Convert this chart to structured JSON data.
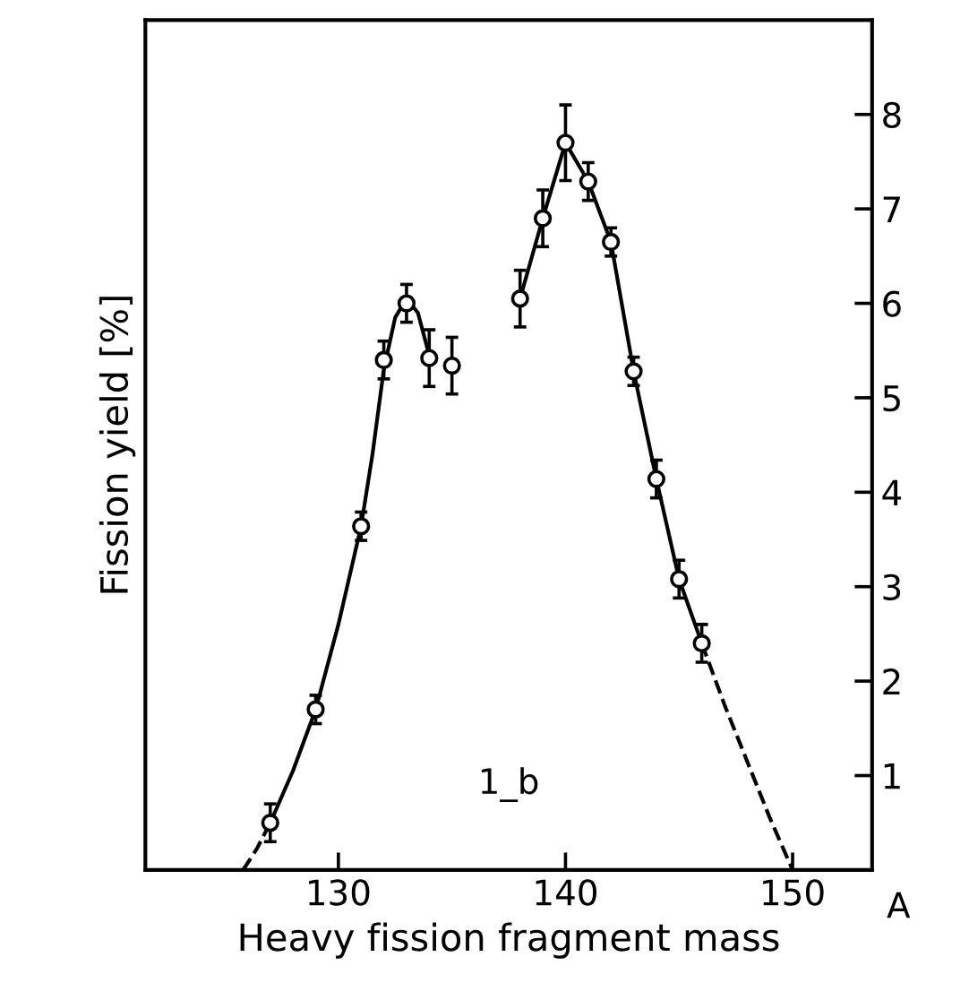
{
  "chart_data": {
    "type": "scatter",
    "xlabel": "Heavy fission fragment mass",
    "ylabel": "Fission yield [%]",
    "xlim": [
      121.5,
      153.5
    ],
    "ylim": [
      0,
      9
    ],
    "xticks": [
      130,
      140,
      150
    ],
    "yticks": [
      1,
      2,
      3,
      4,
      5,
      6,
      7,
      8
    ],
    "annotations": [
      "A",
      "1_b"
    ],
    "grid": false,
    "legend": false,
    "series": [
      {
        "marker": "circle",
        "color": "#000000",
        "x": [
          127,
          129,
          131,
          132,
          133,
          134,
          135,
          138,
          139,
          140,
          141,
          142,
          143,
          144,
          145,
          146
        ],
        "values": [
          0.5,
          1.7,
          3.64,
          5.4,
          6.0,
          5.42,
          5.34,
          6.05,
          6.9,
          7.7,
          7.29,
          6.65,
          5.28,
          4.14,
          3.08,
          2.4
        ],
        "errors": [
          0.2,
          0.15,
          0.15,
          0.2,
          0.2,
          0.3,
          0.3,
          0.3,
          0.3,
          0.4,
          0.2,
          0.15,
          0.15,
          0.2,
          0.2,
          0.2
        ]
      },
      {
        "type": "line",
        "color": "#000000",
        "line_style": "solid",
        "x": [
          127,
          128,
          129,
          130,
          131,
          131.5,
          132,
          132.5,
          133,
          133.5,
          134
        ],
        "values": [
          0.5,
          1.05,
          1.7,
          2.6,
          3.64,
          4.4,
          5.3,
          5.85,
          6.05,
          5.9,
          5.45
        ]
      },
      {
        "type": "line",
        "color": "#000000",
        "line_style": "solid",
        "x": [
          138,
          139,
          140,
          141,
          142,
          143,
          144,
          145,
          146
        ],
        "values": [
          6.05,
          6.9,
          7.7,
          7.29,
          6.65,
          5.28,
          4.14,
          3.08,
          2.4
        ]
      },
      {
        "type": "line",
        "color": "#000000",
        "line_style": "dashed",
        "x": [
          125.8,
          126.4,
          127
        ],
        "values": [
          0,
          0.22,
          0.5
        ]
      },
      {
        "type": "line",
        "color": "#000000",
        "line_style": "dashed",
        "x": [
          146,
          147,
          148,
          149,
          150
        ],
        "values": [
          2.4,
          1.75,
          1.15,
          0.55,
          0
        ]
      }
    ]
  }
}
